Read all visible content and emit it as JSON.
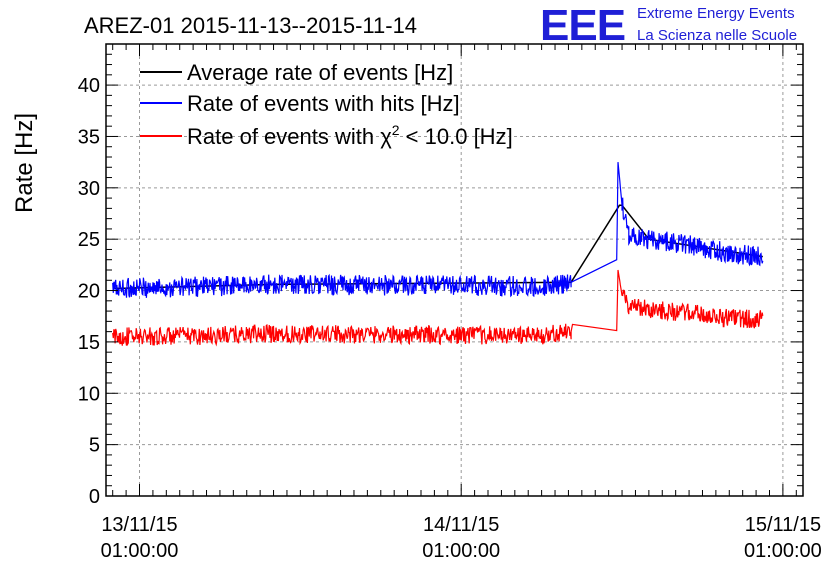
{
  "chart_data": {
    "type": "line",
    "title": "AREZ-01 2015-11-13--2015-11-14",
    "ylabel": "Rate [Hz]",
    "xlabel": "",
    "ylim": [
      0,
      44
    ],
    "yticks": [
      0,
      5,
      10,
      15,
      20,
      25,
      30,
      35,
      40
    ],
    "xlim_hours": [
      -2.5,
      49.5
    ],
    "x_ticks": [
      {
        "hour": 0,
        "date": "13/11/15",
        "time": "01:00:00"
      },
      {
        "hour": 24,
        "date": "14/11/15",
        "time": "01:00:00"
      },
      {
        "hour": 48,
        "date": "15/11/15",
        "time": "01:00:00"
      }
    ],
    "grid": true,
    "legend_position": "top-left",
    "series": [
      {
        "name": "Average rate of events [Hz]",
        "color": "#000000",
        "points": [
          [
            -2,
            20.2
          ],
          [
            10,
            20.6
          ],
          [
            32.2,
            20.8
          ],
          [
            35.8,
            28.3
          ],
          [
            36.0,
            28.3
          ],
          [
            38.0,
            25.0
          ],
          [
            46.5,
            23.3
          ]
        ]
      },
      {
        "name": "Rate of events with hits [Hz]",
        "color": "#0000ff",
        "noise": 1.0,
        "points": [
          [
            -2,
            20.2
          ],
          [
            5,
            20.4
          ],
          [
            10,
            20.6
          ],
          [
            20,
            20.5
          ],
          [
            30,
            20.4
          ],
          [
            32.2,
            20.8
          ],
          [
            35.6,
            23.0
          ],
          [
            35.7,
            32.5
          ],
          [
            36.0,
            28.3
          ],
          [
            36.5,
            25.5
          ],
          [
            38.0,
            25.0
          ],
          [
            41.0,
            24.5
          ],
          [
            44.0,
            23.6
          ],
          [
            46.5,
            23.3
          ]
        ]
      },
      {
        "name": "Rate of events with χ² < 10.0 [Hz]",
        "color": "#ff0000",
        "noise": 0.9,
        "points": [
          [
            -2,
            15.5
          ],
          [
            5,
            15.6
          ],
          [
            10,
            15.8
          ],
          [
            20,
            15.7
          ],
          [
            30,
            15.6
          ],
          [
            32.2,
            16.0
          ],
          [
            32.3,
            16.7
          ],
          [
            35.6,
            16.1
          ],
          [
            35.7,
            22.0
          ],
          [
            36.0,
            19.5
          ],
          [
            36.5,
            18.6
          ],
          [
            38.0,
            18.2
          ],
          [
            41.0,
            17.8
          ],
          [
            44.0,
            17.3
          ],
          [
            46.5,
            17.2
          ]
        ]
      }
    ],
    "legend_entries": [
      {
        "prefix": "Average rate of events [Hz]",
        "sup": "",
        "suffix": ""
      },
      {
        "prefix": "Rate of events with hits [Hz]",
        "sup": "",
        "suffix": ""
      },
      {
        "prefix": "Rate of events with χ",
        "sup": "2",
        "suffix": " < 10.0 [Hz]"
      }
    ]
  },
  "logo": {
    "mark": "EEE",
    "line1": "Extreme Energy Events",
    "line2": "La Scienza nelle Scuole",
    "color": "#1f1fd6"
  }
}
